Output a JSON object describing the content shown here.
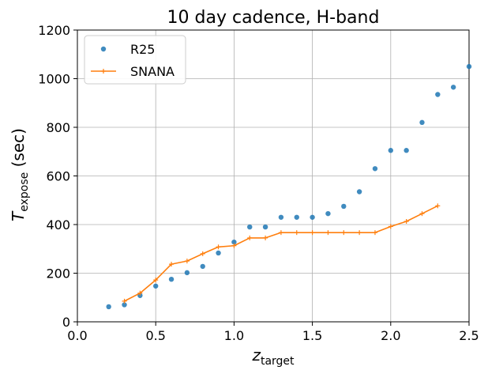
{
  "chart_data": {
    "type": "scatter",
    "title": "10 day cadence, H-band",
    "xlabel": {
      "main": "z",
      "sub": "target"
    },
    "ylabel": {
      "main": "T",
      "sub": "expose",
      "suffix": " (sec)"
    },
    "xlim": [
      0.0,
      2.5
    ],
    "ylim": [
      0,
      1200
    ],
    "x_ticks": [
      0.0,
      0.5,
      1.0,
      1.5,
      2.0,
      2.5
    ],
    "x_tick_labels": [
      "0.0",
      "0.5",
      "1.0",
      "1.5",
      "2.0",
      "2.5"
    ],
    "y_ticks": [
      0,
      200,
      400,
      600,
      800,
      1000,
      1200
    ],
    "y_tick_labels": [
      "0",
      "200",
      "400",
      "600",
      "800",
      "1000",
      "1200"
    ],
    "grid": true,
    "legend_position": "top-left",
    "series": [
      {
        "name": "R25",
        "style": "markers",
        "color": "#1f77b4",
        "x": [
          0.2,
          0.3,
          0.4,
          0.5,
          0.6,
          0.7,
          0.8,
          0.9,
          1.0,
          1.1,
          1.2,
          1.3,
          1.4,
          1.5,
          1.6,
          1.7,
          1.8,
          1.9,
          2.0,
          2.1,
          2.2,
          2.3,
          2.4,
          2.5
        ],
        "y": [
          62,
          70,
          108,
          147,
          175,
          202,
          228,
          283,
          328,
          390,
          390,
          430,
          430,
          430,
          445,
          475,
          535,
          630,
          705,
          705,
          820,
          935,
          965,
          1050
        ]
      },
      {
        "name": "SNANA",
        "style": "line-plus",
        "color": "#ff7f0e",
        "x": [
          0.3,
          0.4,
          0.5,
          0.6,
          0.7,
          0.8,
          0.9,
          1.0,
          1.1,
          1.2,
          1.3,
          1.4,
          1.5,
          1.6,
          1.7,
          1.8,
          1.9,
          2.0,
          2.1,
          2.2,
          2.3
        ],
        "y": [
          85,
          118,
          172,
          237,
          250,
          280,
          308,
          313,
          345,
          345,
          367,
          367,
          367,
          367,
          367,
          367,
          367,
          392,
          413,
          445,
          477
        ]
      }
    ]
  }
}
